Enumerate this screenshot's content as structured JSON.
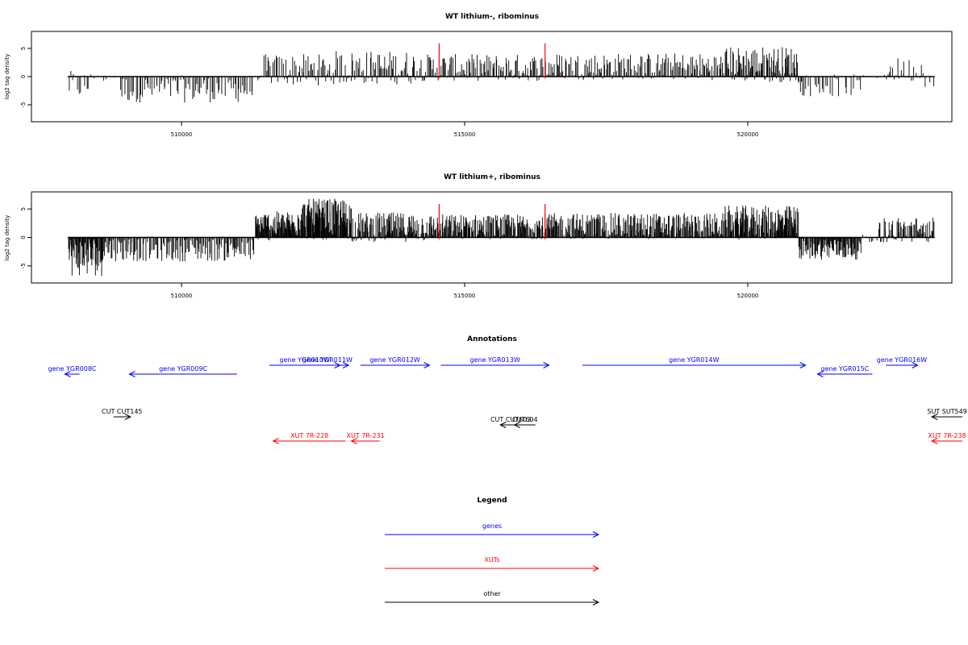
{
  "chart_data": [
    {
      "type": "bar",
      "title": "WT lithium-, ribominus",
      "ylabel": "log2 tag density",
      "xlabel": "",
      "xlim": [
        507600,
        523800
      ],
      "ylim": [
        -8,
        8
      ],
      "x_ticks": [
        510000,
        515000,
        520000
      ],
      "x_tick_labels": [
        "510000",
        "515000",
        "520000"
      ],
      "y_ticks": [
        -5,
        0,
        5
      ],
      "y_tick_labels": [
        "-5",
        "0",
        "5"
      ],
      "grid": false,
      "bar_color": "#000000",
      "marker_color": "#ff0000",
      "markers": [
        514550,
        516420
      ],
      "segments": [
        {
          "start": 508000,
          "end": 508400,
          "mean": -1.5,
          "amp": 2.5,
          "count": 14
        },
        {
          "start": 508400,
          "end": 508900,
          "mean": -0.2,
          "amp": 0.8,
          "count": 4
        },
        {
          "start": 508900,
          "end": 511300,
          "mean": -2.2,
          "amp": 2.4,
          "count": 90
        },
        {
          "start": 511300,
          "end": 511450,
          "mean": -0.2,
          "amp": 0.5,
          "count": 3
        },
        {
          "start": 511450,
          "end": 512700,
          "mean": 1.2,
          "amp": 2.8,
          "count": 60
        },
        {
          "start": 512700,
          "end": 514100,
          "mean": 1.6,
          "amp": 3.0,
          "count": 70
        },
        {
          "start": 514100,
          "end": 516500,
          "mean": 1.6,
          "amp": 2.4,
          "count": 120
        },
        {
          "start": 516500,
          "end": 519600,
          "mean": 1.8,
          "amp": 2.4,
          "count": 160
        },
        {
          "start": 519600,
          "end": 520900,
          "mean": 2.2,
          "amp": 3.2,
          "count": 100
        },
        {
          "start": 520900,
          "end": 521000,
          "mean": -1.8,
          "amp": 1.6,
          "count": 6
        },
        {
          "start": 521000,
          "end": 522000,
          "mean": -1.6,
          "amp": 2.0,
          "count": 30
        },
        {
          "start": 522000,
          "end": 522400,
          "mean": -0.2,
          "amp": 0.5,
          "count": 3
        },
        {
          "start": 522400,
          "end": 523100,
          "mean": 1.2,
          "amp": 2.2,
          "count": 24
        },
        {
          "start": 523100,
          "end": 523300,
          "mean": -0.2,
          "amp": 1.6,
          "count": 3
        }
      ]
    },
    {
      "type": "bar",
      "title": "WT lithium+, ribominus",
      "ylabel": "log2 tag density",
      "xlabel": "",
      "xlim": [
        507600,
        523800
      ],
      "ylim": [
        -8,
        8
      ],
      "x_ticks": [
        510000,
        515000,
        520000
      ],
      "x_tick_labels": [
        "510000",
        "515000",
        "520000"
      ],
      "y_ticks": [
        -5,
        0,
        5
      ],
      "y_tick_labels": [
        "-5",
        "0",
        "5"
      ],
      "grid": false,
      "bar_color": "#000000",
      "marker_color": "#ff0000",
      "markers": [
        514550,
        516420
      ],
      "segments": [
        {
          "start": 508000,
          "end": 508600,
          "mean": -3.2,
          "amp": 3.6,
          "count": 60
        },
        {
          "start": 508600,
          "end": 511300,
          "mean": -2.0,
          "amp": 2.2,
          "count": 160
        },
        {
          "start": 511300,
          "end": 512000,
          "mean": 2.0,
          "amp": 2.6,
          "count": 90
        },
        {
          "start": 512000,
          "end": 513000,
          "mean": 3.2,
          "amp": 3.6,
          "count": 130
        },
        {
          "start": 513000,
          "end": 514300,
          "mean": 1.8,
          "amp": 2.6,
          "count": 120
        },
        {
          "start": 514300,
          "end": 516500,
          "mean": 1.9,
          "amp": 2.2,
          "count": 200
        },
        {
          "start": 516500,
          "end": 519600,
          "mean": 2.0,
          "amp": 2.3,
          "count": 260
        },
        {
          "start": 519600,
          "end": 520900,
          "mean": 2.6,
          "amp": 3.0,
          "count": 140
        },
        {
          "start": 520900,
          "end": 522000,
          "mean": -1.9,
          "amp": 2.0,
          "count": 100
        },
        {
          "start": 522000,
          "end": 522300,
          "mean": -0.3,
          "amp": 0.8,
          "count": 6
        },
        {
          "start": 522300,
          "end": 523300,
          "mean": 1.3,
          "amp": 2.3,
          "count": 70
        }
      ]
    }
  ],
  "annotations": {
    "title": "Annotations",
    "xlim": [
      507600,
      523800
    ],
    "items": [
      {
        "label": "gene YGR008C",
        "start": 508200,
        "end": 507940,
        "row": 0,
        "color": "#0000ff"
      },
      {
        "label": "gene YGR009C",
        "start": 510980,
        "end": 509080,
        "row": 0,
        "color": "#0000ff"
      },
      {
        "label": "gene YGR010W",
        "start": 511550,
        "end": 512800,
        "row": 1,
        "color": "#0000ff"
      },
      {
        "label": "gene YGR011W",
        "start": 512200,
        "end": 512950,
        "row": 1,
        "color": "#0000ff"
      },
      {
        "label": "gene YGR012W",
        "start": 513160,
        "end": 514380,
        "row": 1,
        "color": "#0000ff"
      },
      {
        "label": "gene YGR013W",
        "start": 514580,
        "end": 516490,
        "row": 1,
        "color": "#0000ff"
      },
      {
        "label": "gene YGR014W",
        "start": 517080,
        "end": 521020,
        "row": 1,
        "color": "#0000ff"
      },
      {
        "label": "gene YGR015C",
        "start": 522200,
        "end": 521230,
        "row": 0,
        "color": "#0000ff"
      },
      {
        "label": "gene YGR016W",
        "start": 522440,
        "end": 523000,
        "row": 1,
        "color": "#0000ff"
      },
      {
        "label": "CUT CUT145",
        "start": 508800,
        "end": 509100,
        "row": 2,
        "color": "#000000"
      },
      {
        "label": "CUT CUT603",
        "start": 516000,
        "end": 515630,
        "row": 3,
        "color": "#000000"
      },
      {
        "label": "CUT604",
        "start": 516250,
        "end": 515880,
        "row": 3,
        "color": "#000000"
      },
      {
        "label": "SUT SUT549",
        "start": 523790,
        "end": 523250,
        "row": 2,
        "color": "#000000"
      },
      {
        "label": "XUT 7R-228",
        "start": 512900,
        "end": 511620,
        "row": 4,
        "color": "#ff0000"
      },
      {
        "label": "XUT 7R-231",
        "start": 513500,
        "end": 513000,
        "row": 4,
        "color": "#ff0000"
      },
      {
        "label": "XUT 7R-238",
        "start": 523790,
        "end": 523250,
        "row": 4,
        "color": "#ff0000"
      }
    ]
  },
  "legend": {
    "title": "Legend",
    "items": [
      {
        "label": "genes",
        "color": "#0000ff"
      },
      {
        "label": "XUTs",
        "color": "#ff0000"
      },
      {
        "label": "other",
        "color": "#000000"
      }
    ]
  }
}
